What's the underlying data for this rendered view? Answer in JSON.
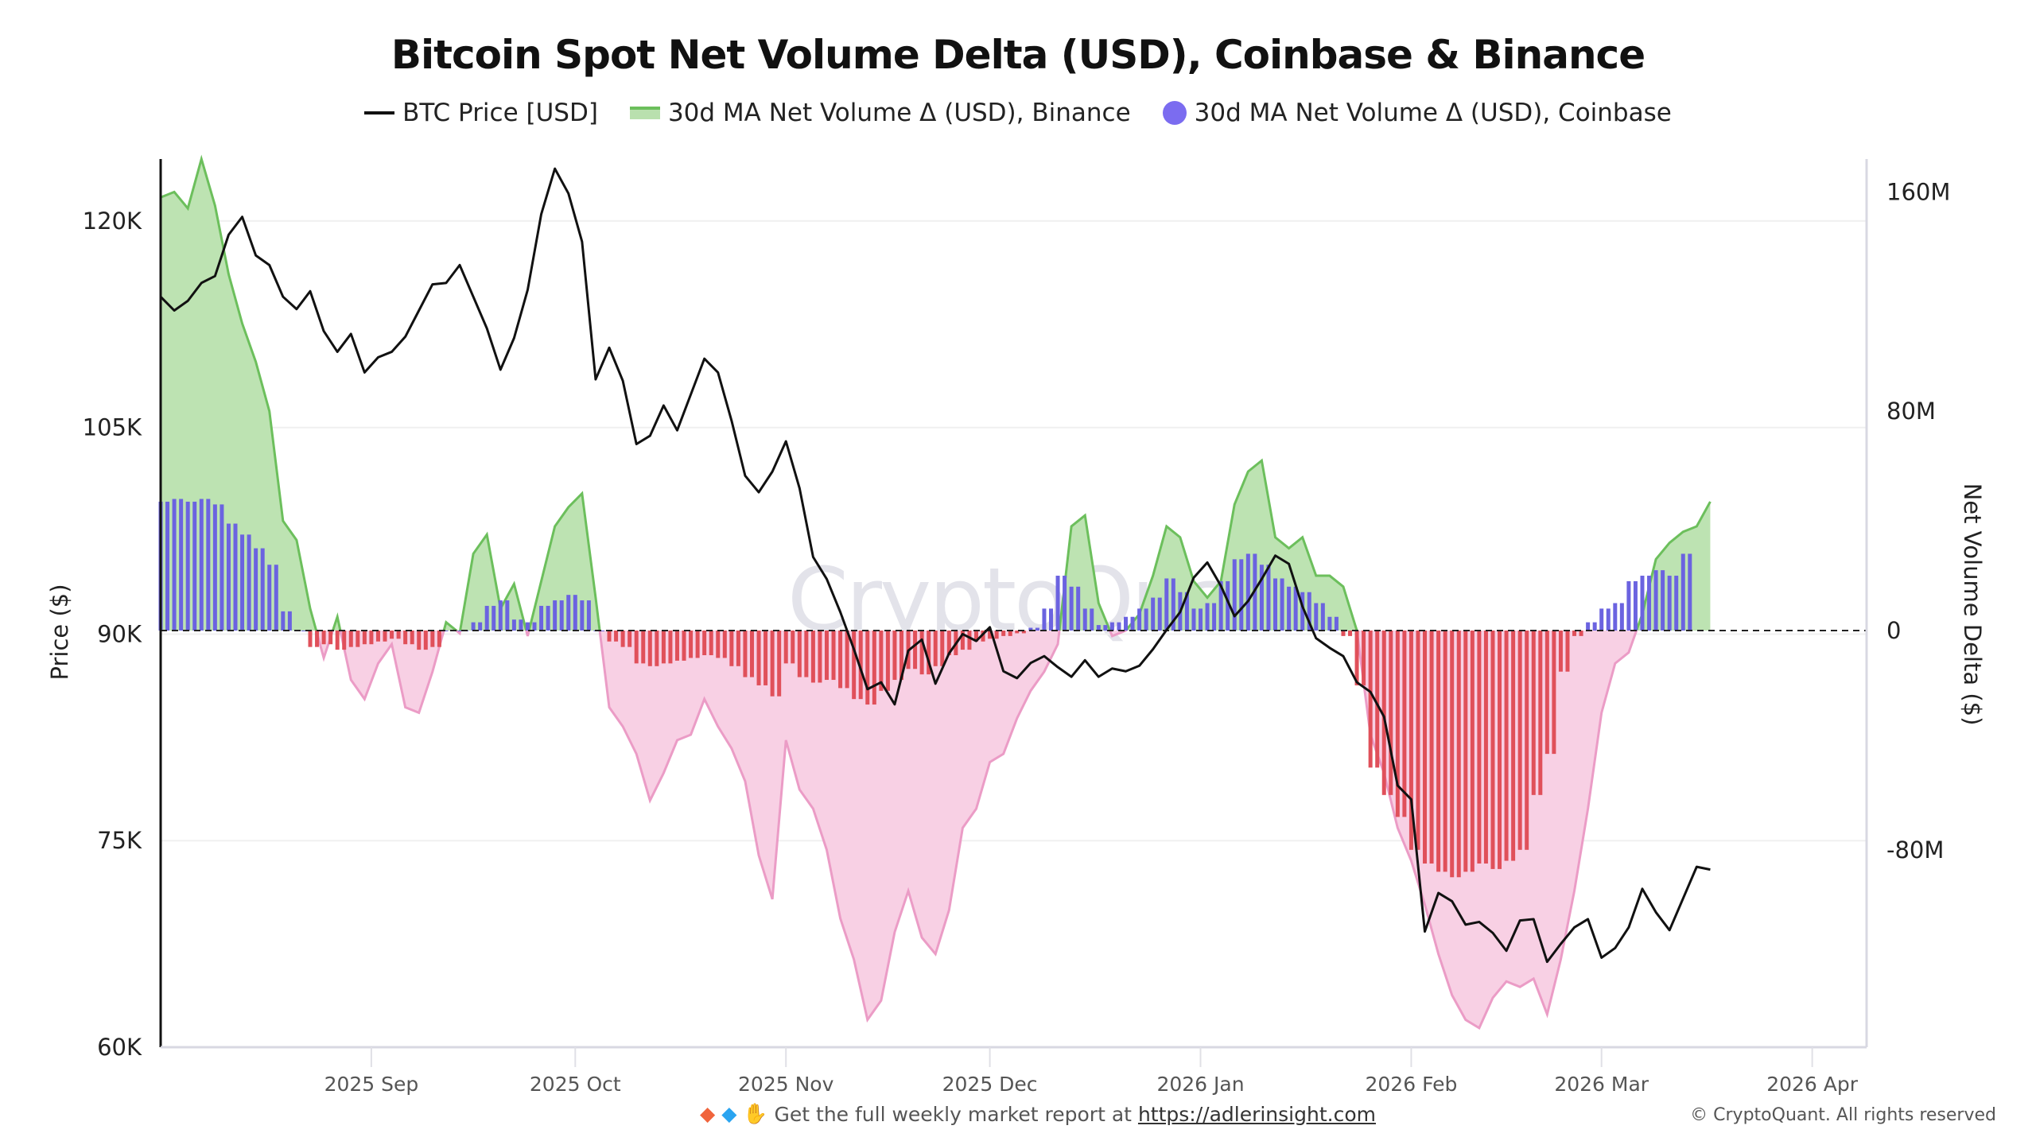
{
  "chart_data": {
    "type": "line",
    "title": "Bitcoin Spot Net Volume Delta (USD), Coinbase & Binance",
    "legend": [
      {
        "name": "BTC Price [USD]",
        "kind": "line",
        "color": "#111111"
      },
      {
        "name": "30d MA Net Volume Δ (USD), Binance",
        "kind": "area",
        "color": "#6cbf5c",
        "negative_color": "#e89ac3"
      },
      {
        "name": "30d MA Net Volume Δ (USD), Coinbase",
        "kind": "bar",
        "color": "#6b63e0",
        "negative_color": "#e0505a"
      }
    ],
    "legend_position": "top-center",
    "xlabel": "",
    "ylabel_left": "Price ($)",
    "ylabel_right": "Net Volume Delta ($)",
    "y_left_ticks": [
      "60K",
      "75K",
      "90K",
      "105K",
      "120K"
    ],
    "y_left_range": [
      60000,
      124500
    ],
    "y_right_ticks": [
      "-80M",
      "0",
      "80M",
      "160M"
    ],
    "y_right_range": [
      -152000000,
      172000000
    ],
    "x_ticks": [
      "2025 Sep",
      "2025 Oct",
      "2025 Nov",
      "2025 Dec",
      "2026 Jan",
      "2026 Feb",
      "2026 Mar",
      "2026 Apr"
    ],
    "x_tick_days": [
      31,
      61,
      92,
      122,
      153,
      184,
      212,
      243
    ],
    "x_range_days": [
      0,
      251
    ],
    "x_origin": "2025-08-01",
    "btc_price": {
      "days": [
        0,
        2,
        4,
        6,
        8,
        10,
        12,
        14,
        16,
        18,
        20,
        22,
        24,
        26,
        28,
        30,
        32,
        34,
        36,
        38,
        40,
        42,
        44,
        46,
        48,
        50,
        52,
        54,
        56,
        58,
        60,
        62,
        64,
        66,
        68,
        70,
        72,
        74,
        76,
        78,
        80,
        82,
        84,
        86,
        88,
        90,
        92,
        94,
        96,
        98,
        100,
        102,
        104,
        106,
        108,
        110,
        112,
        114,
        116,
        118,
        120,
        122,
        124,
        126,
        128,
        130,
        132,
        134,
        136,
        138,
        140,
        142,
        144,
        146,
        148,
        150,
        152,
        154,
        156,
        158,
        160,
        162,
        164,
        166,
        168,
        170,
        172,
        174,
        176,
        178,
        180,
        182,
        184,
        186,
        188,
        190,
        192,
        194,
        196,
        198,
        200,
        202,
        204,
        206,
        208,
        210,
        212,
        214,
        216,
        218,
        220,
        222,
        224,
        226,
        228
      ],
      "values": [
        114500,
        113500,
        114200,
        115500,
        116000,
        119000,
        120300,
        117500,
        116800,
        114500,
        113600,
        114900,
        112000,
        110500,
        111800,
        109000,
        110100,
        110500,
        111600,
        113500,
        115400,
        115500,
        116800,
        114500,
        112200,
        109200,
        111500,
        115000,
        120500,
        123800,
        122000,
        118500,
        108500,
        110800,
        108400,
        103800,
        104400,
        106600,
        104800,
        107400,
        110000,
        109000,
        105500,
        101500,
        100300,
        101800,
        104000,
        100600,
        95600,
        94000,
        91600,
        88900,
        86000,
        86500,
        84900,
        88800,
        89600,
        86400,
        88600,
        90000,
        89500,
        90500,
        87300,
        86800,
        87900,
        88400,
        87600,
        86900,
        88100,
        86900,
        87500,
        87300,
        87700,
        88900,
        90300,
        91600,
        94100,
        95200,
        93500,
        91300,
        92400,
        94000,
        95700,
        95100,
        92000,
        89700,
        89000,
        88400,
        86500,
        85800,
        84000,
        79000,
        78000,
        68400,
        71200,
        70600,
        68900,
        69100,
        68300,
        67000,
        69200,
        69300,
        66200,
        67500,
        68700,
        69300,
        66500,
        67200,
        68700,
        71500,
        69800,
        68500,
        70800,
        73100,
        72900
      ]
    },
    "binance_net_volume_delta_30dma": {
      "days": [
        0,
        2,
        4,
        6,
        8,
        10,
        12,
        14,
        16,
        18,
        20,
        22,
        24,
        26,
        28,
        30,
        32,
        34,
        36,
        38,
        40,
        42,
        44,
        46,
        48,
        50,
        52,
        54,
        56,
        58,
        60,
        62,
        64,
        66,
        68,
        70,
        72,
        74,
        76,
        78,
        80,
        82,
        84,
        86,
        88,
        90,
        92,
        94,
        96,
        98,
        100,
        102,
        104,
        106,
        108,
        110,
        112,
        114,
        116,
        118,
        120,
        122,
        124,
        126,
        128,
        130,
        132,
        134,
        136,
        138,
        140,
        142,
        144,
        146,
        148,
        150,
        152,
        154,
        156,
        158,
        160,
        162,
        164,
        166,
        168,
        170,
        172,
        174,
        176,
        178,
        180,
        182,
        184,
        186,
        188,
        190,
        192,
        194,
        196,
        198,
        200,
        202,
        204,
        206,
        208,
        210,
        212,
        214,
        216,
        218,
        220,
        222,
        224,
        226,
        228
      ],
      "values": [
        158000000,
        160000000,
        154000000,
        172000000,
        155000000,
        130000000,
        112000000,
        98000000,
        80000000,
        40000000,
        33000000,
        8000000,
        -10000000,
        5000000,
        -18000000,
        -25000000,
        -12000000,
        -5000000,
        -28000000,
        -30000000,
        -15000000,
        3000000,
        -1000000,
        28000000,
        35000000,
        8000000,
        17000000,
        -2000000,
        18000000,
        38000000,
        45000000,
        50000000,
        12000000,
        -28000000,
        -35000000,
        -45000000,
        -62000000,
        -52000000,
        -40000000,
        -38000000,
        -25000000,
        -35000000,
        -43000000,
        -55000000,
        -82000000,
        -98000000,
        -40000000,
        -58000000,
        -65000000,
        -80000000,
        -105000000,
        -120000000,
        -142000000,
        -135000000,
        -110000000,
        -95000000,
        -112000000,
        -118000000,
        -102000000,
        -72000000,
        -65000000,
        -48000000,
        -45000000,
        -32000000,
        -22000000,
        -15000000,
        -5000000,
        38000000,
        42000000,
        10000000,
        -2000000,
        0,
        6000000,
        20000000,
        38000000,
        34000000,
        18000000,
        12000000,
        18000000,
        46000000,
        58000000,
        62000000,
        34000000,
        30000000,
        34000000,
        20000000,
        20000000,
        16000000,
        0,
        -38000000,
        -52000000,
        -72000000,
        -84000000,
        -100000000,
        -118000000,
        -133000000,
        -142000000,
        -145000000,
        -134000000,
        -128000000,
        -130000000,
        -127000000,
        -140000000,
        -120000000,
        -95000000,
        -65000000,
        -30000000,
        -12000000,
        -8000000,
        6000000,
        26000000,
        32000000,
        36000000,
        38000000,
        47000000
      ]
    },
    "coinbase_net_volume_delta_30dma": {
      "days": [
        0,
        2,
        4,
        6,
        8,
        10,
        12,
        14,
        16,
        18,
        20,
        22,
        24,
        26,
        28,
        30,
        32,
        34,
        36,
        38,
        40,
        42,
        44,
        46,
        48,
        50,
        52,
        54,
        56,
        58,
        60,
        62,
        64,
        66,
        68,
        70,
        72,
        74,
        76,
        78,
        80,
        82,
        84,
        86,
        88,
        90,
        92,
        94,
        96,
        98,
        100,
        102,
        104,
        106,
        108,
        110,
        112,
        114,
        116,
        118,
        120,
        122,
        124,
        126,
        128,
        130,
        132,
        134,
        136,
        138,
        140,
        142,
        144,
        146,
        148,
        150,
        152,
        154,
        156,
        158,
        160,
        162,
        164,
        166,
        168,
        170,
        172,
        174,
        176,
        178,
        180,
        182,
        184,
        186,
        188,
        190,
        192,
        194,
        196,
        198,
        200,
        202,
        204,
        206,
        208,
        210,
        212,
        214,
        216,
        218,
        220,
        222,
        224,
        226,
        228
      ],
      "values": [
        47000000,
        48000000,
        47000000,
        48000000,
        46000000,
        39000000,
        35000000,
        30000000,
        24000000,
        7000000,
        0,
        -6000000,
        -5000000,
        -7000000,
        -6000000,
        -5000000,
        -4000000,
        -3000000,
        -5000000,
        -7000000,
        -6000000,
        0,
        0,
        3000000,
        9000000,
        11000000,
        4000000,
        3000000,
        9000000,
        11000000,
        13000000,
        11000000,
        0,
        -4000000,
        -6000000,
        -12000000,
        -13000000,
        -12000000,
        -11000000,
        -10000000,
        -9000000,
        -10000000,
        -13000000,
        -17000000,
        -20000000,
        -24000000,
        -12000000,
        -17000000,
        -19000000,
        -18000000,
        -21000000,
        -25000000,
        -27000000,
        -22000000,
        -18000000,
        -14000000,
        -16000000,
        -13000000,
        -9000000,
        -7000000,
        -4000000,
        -3000000,
        -2000000,
        -1000000,
        1000000,
        8000000,
        20000000,
        16000000,
        8000000,
        2000000,
        3000000,
        5000000,
        8000000,
        12000000,
        19000000,
        14000000,
        8000000,
        10000000,
        18000000,
        26000000,
        28000000,
        24000000,
        19000000,
        16000000,
        14000000,
        10000000,
        5000000,
        -2000000,
        -20000000,
        -50000000,
        -60000000,
        -68000000,
        -80000000,
        -85000000,
        -88000000,
        -90000000,
        -88000000,
        -85000000,
        -87000000,
        -84000000,
        -80000000,
        -60000000,
        -45000000,
        -15000000,
        -2000000,
        3000000,
        8000000,
        10000000,
        18000000,
        20000000,
        22000000,
        20000000,
        28000000
      ]
    }
  },
  "footer": {
    "text": "Get the full weekly market report at",
    "link": "https://adlerinsight.com",
    "emoji": "🔶 💎 🙌"
  },
  "copyright": "© CryptoQuant. All rights reserved",
  "watermark": "CryptoQuant"
}
